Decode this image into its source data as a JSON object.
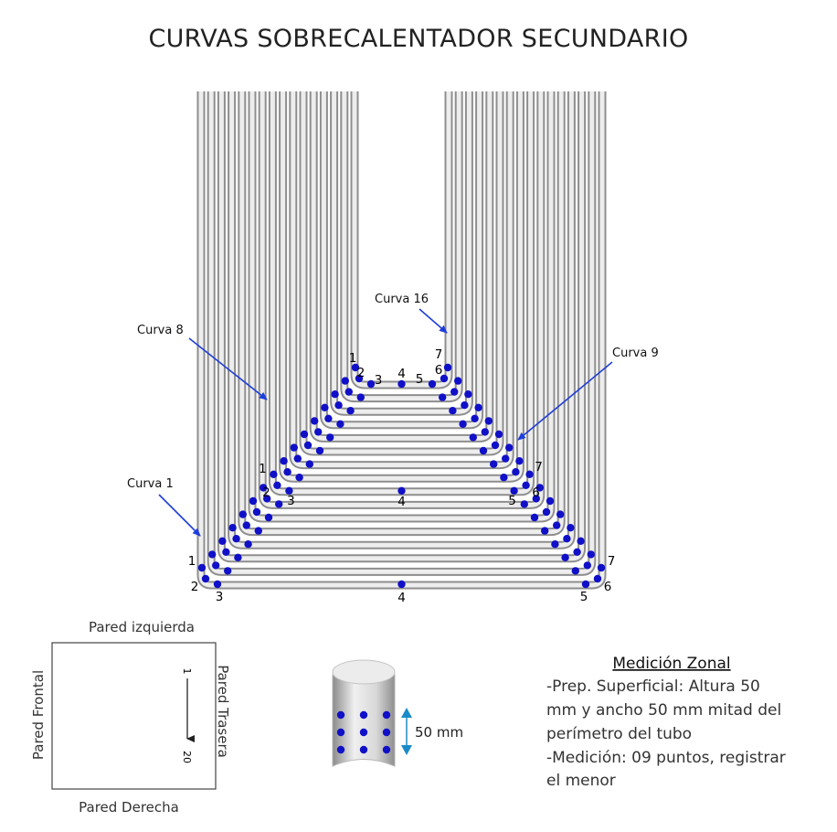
{
  "title": "CURVAS SOBRECALENTADOR SECUNDARIO",
  "curva_labels": {
    "curva_1": "Curva 1",
    "curva_8": "Curva 8",
    "curva_9": "Curva 9",
    "curva_16": "Curva 16"
  },
  "point_numbers": [
    "1",
    "2",
    "3",
    "4",
    "5",
    "6",
    "7"
  ],
  "wall_diagram": {
    "top": "Pared izquierda",
    "bottom": "Pared Derecha",
    "left": "Pared Frontal",
    "right": "Pared Trasera",
    "start": "1",
    "end": "20"
  },
  "tube_diagram": {
    "height_label": "50 mm"
  },
  "notes": {
    "heading": "Medición Zonal",
    "lines": [
      "-Prep.  Superficial:  Altura  50",
      "mm y ancho 50 mm mitad del",
      "perímetro del tubo",
      "-Medición: 09 puntos, registrar",
      "el menor"
    ]
  },
  "colors": {
    "point": "#1010c8",
    "arrow": "#1f3ed8",
    "tube_light": "#f2f2f2",
    "tube_dark": "#9a9a9a"
  }
}
